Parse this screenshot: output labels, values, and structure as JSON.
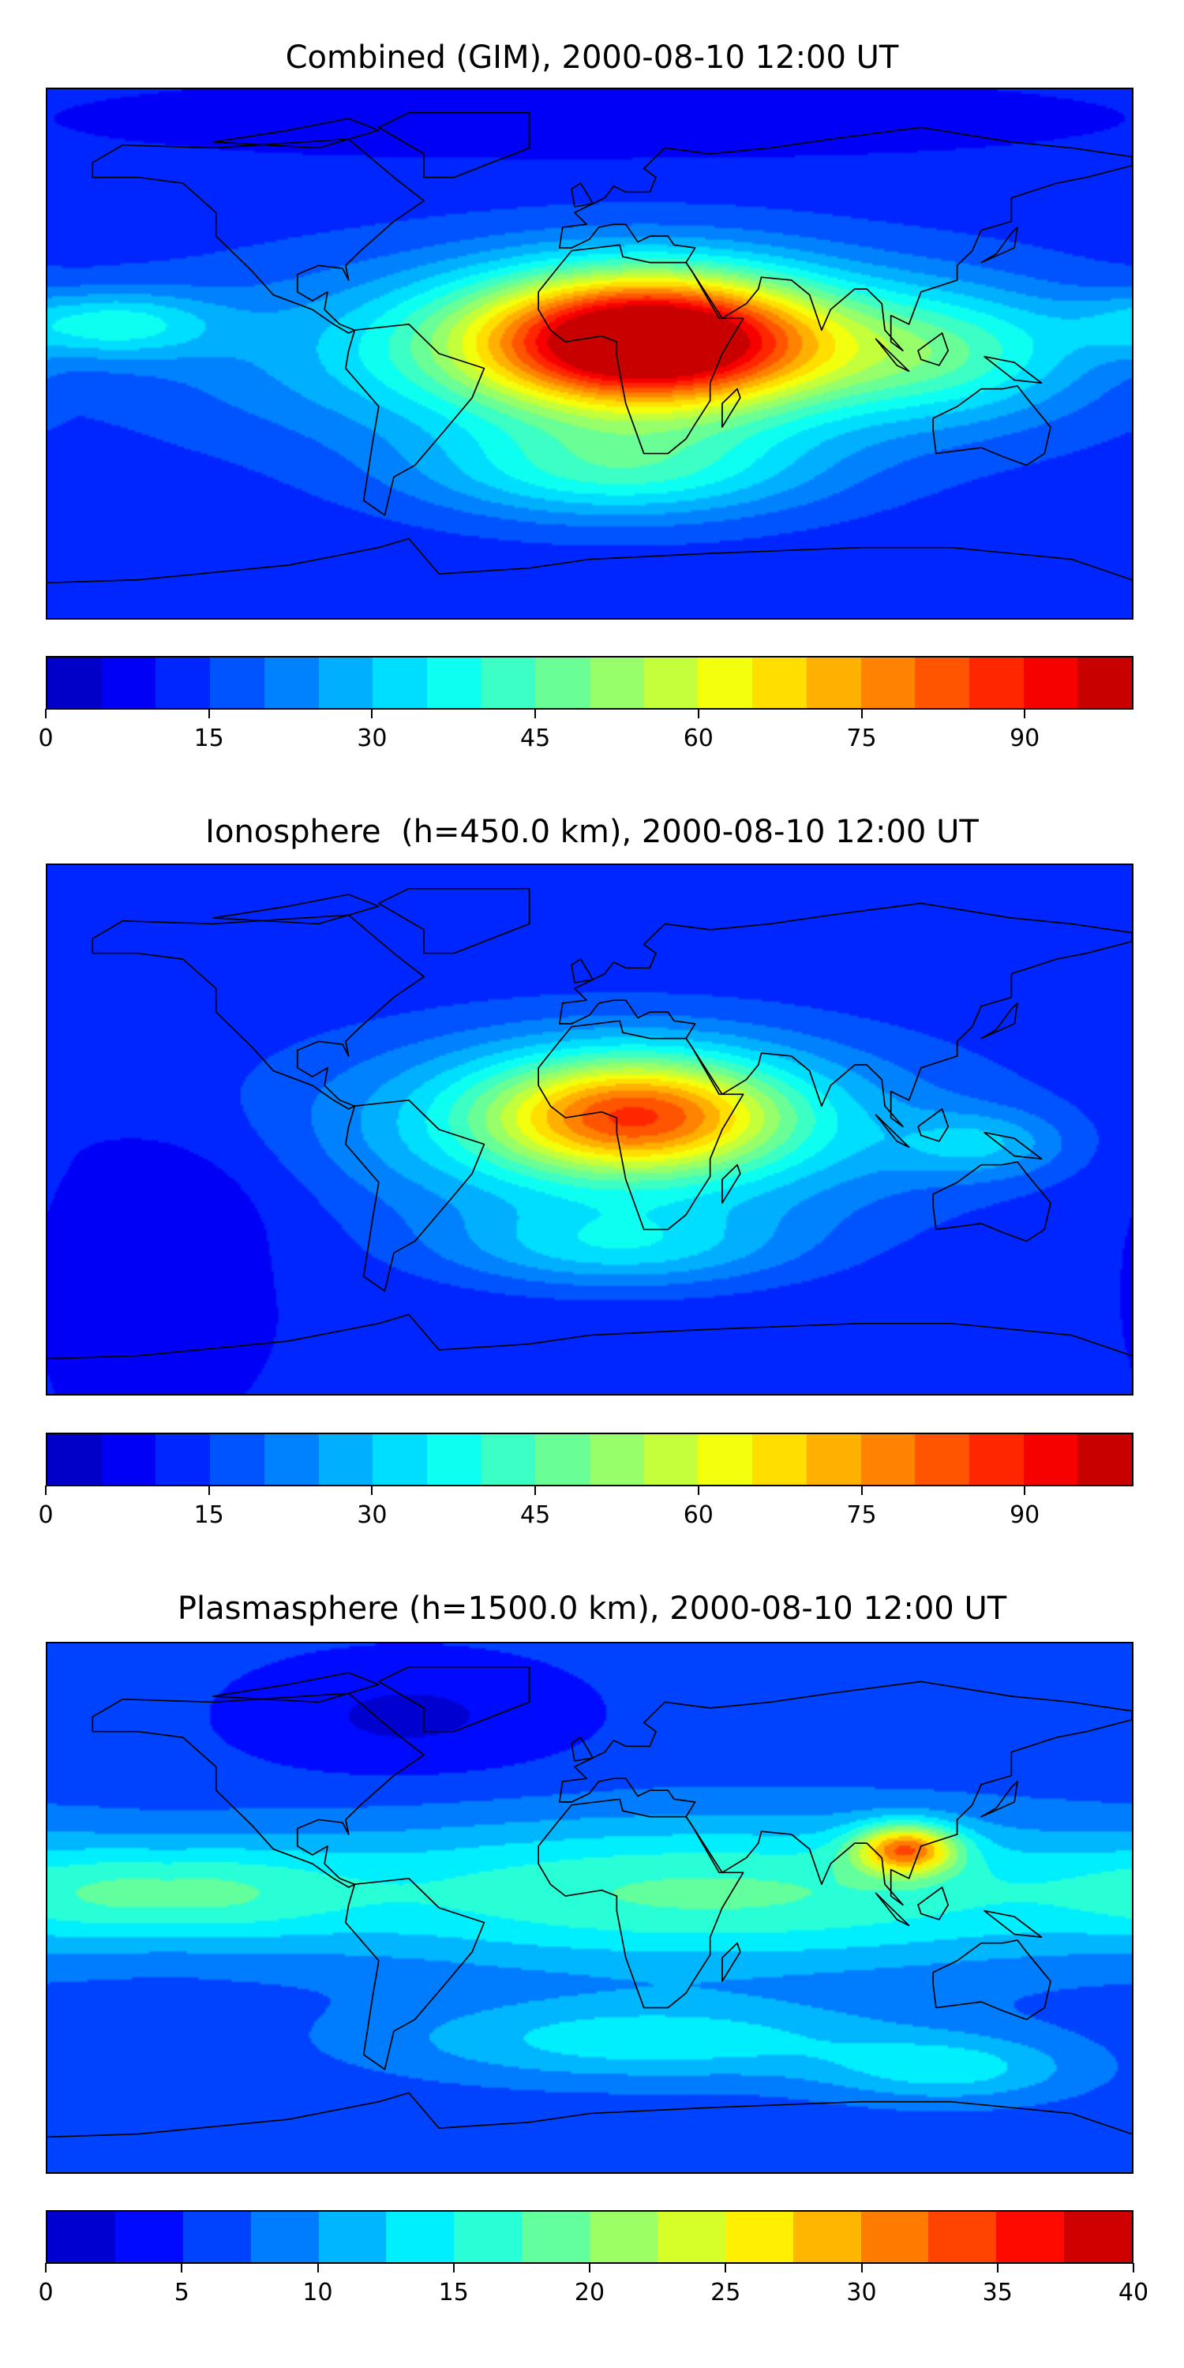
{
  "chart_data": [
    {
      "type": "heatmap",
      "title": "Combined (GIM), 2000-08-10 12:00 UT",
      "xlabel": "",
      "ylabel": "",
      "colormap": "jet",
      "levels": {
        "min": 0,
        "max": 100,
        "step": 5
      },
      "colorbar_ticks": [
        "0",
        "15",
        "30",
        "45",
        "60",
        "75",
        "90"
      ],
      "colorbar_tick_values": [
        0,
        15,
        30,
        45,
        60,
        75,
        90
      ],
      "field": {
        "background": 12,
        "features": [
          {
            "lon": 20,
            "lat": 5,
            "sx": 40,
            "sy": 16,
            "amp": 78
          },
          {
            "lon": 10,
            "lat": 0,
            "sx": 90,
            "sy": 22,
            "amp": 30
          },
          {
            "lon": 10,
            "lat": -40,
            "sx": 45,
            "sy": 12,
            "amp": 25
          },
          {
            "lon": -160,
            "lat": 10,
            "sx": 25,
            "sy": 8,
            "amp": 22
          },
          {
            "lon": 120,
            "lat": 0,
            "sx": 30,
            "sy": 15,
            "amp": 18
          },
          {
            "lon": 0,
            "lat": 80,
            "sx": 120,
            "sy": 10,
            "amp": -6
          }
        ]
      }
    },
    {
      "type": "heatmap",
      "title": "Ionosphere  (h=450.0 km), 2000-08-10 12:00 UT",
      "xlabel": "",
      "ylabel": "",
      "colormap": "jet",
      "levels": {
        "min": 0,
        "max": 100,
        "step": 5
      },
      "colorbar_ticks": [
        "0",
        "15",
        "30",
        "45",
        "60",
        "75",
        "90"
      ],
      "colorbar_tick_values": [
        0,
        15,
        30,
        45,
        60,
        75,
        90
      ],
      "field": {
        "background": 10,
        "features": [
          {
            "lon": 15,
            "lat": 5,
            "sx": 35,
            "sy": 14,
            "amp": 52
          },
          {
            "lon": 10,
            "lat": 0,
            "sx": 80,
            "sy": 25,
            "amp": 25
          },
          {
            "lon": 10,
            "lat": -40,
            "sx": 40,
            "sy": 10,
            "amp": 18
          },
          {
            "lon": -130,
            "lat": -20,
            "sx": 30,
            "sy": 20,
            "amp": -6
          },
          {
            "lon": 130,
            "lat": -5,
            "sx": 20,
            "sy": 8,
            "amp": 14
          }
        ]
      }
    },
    {
      "type": "heatmap",
      "title": "Plasmasphere (h=1500.0 km), 2000-08-10 12:00 UT",
      "xlabel": "",
      "ylabel": "",
      "colormap": "jet",
      "levels": {
        "min": 0,
        "max": 40,
        "step": 2.5
      },
      "colorbar_ticks": [
        "0",
        "5",
        "10",
        "15",
        "20",
        "25",
        "30",
        "35",
        "40"
      ],
      "colorbar_tick_values": [
        0,
        5,
        10,
        15,
        20,
        25,
        30,
        35,
        40
      ],
      "field": {
        "background": 6,
        "features": [
          {
            "lon": 105,
            "lat": 20,
            "sx": 12,
            "sy": 6,
            "amp": 20
          },
          {
            "lon": 40,
            "lat": 5,
            "sx": 110,
            "sy": 18,
            "amp": 12
          },
          {
            "lon": -140,
            "lat": 5,
            "sx": 40,
            "sy": 12,
            "amp": 9
          },
          {
            "lon": 20,
            "lat": -45,
            "sx": 60,
            "sy": 10,
            "amp": 8
          },
          {
            "lon": -60,
            "lat": 65,
            "sx": 40,
            "sy": 15,
            "amp": -4
          },
          {
            "lon": 120,
            "lat": -55,
            "sx": 30,
            "sy": 8,
            "amp": 7
          }
        ]
      }
    }
  ]
}
